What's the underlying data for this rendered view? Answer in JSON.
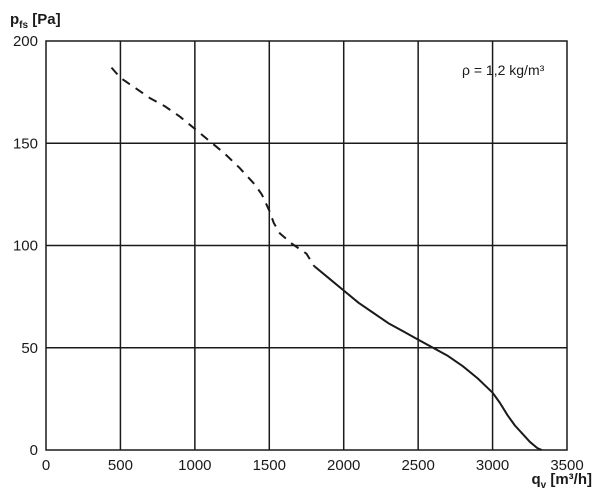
{
  "chart_data": {
    "type": "line",
    "ylabel": {
      "main": "p",
      "sub": "fs",
      "unit": " [Pa]"
    },
    "xlabel": {
      "main": "q",
      "sub": "v",
      "unit": " [m³/h]"
    },
    "annotation": "ρ = 1,2 kg/m³",
    "xlim": [
      0,
      3500
    ],
    "ylim": [
      0,
      200
    ],
    "x_ticks": [
      0,
      500,
      1000,
      1500,
      2000,
      2500,
      3000,
      3500
    ],
    "y_ticks": [
      0,
      50,
      100,
      150,
      200
    ],
    "grid": true,
    "series": [
      {
        "style": "dashed",
        "x": [
          440,
          500,
          600,
          700,
          800,
          900,
          1000,
          1100,
          1200,
          1300,
          1400,
          1450,
          1500,
          1530,
          1570,
          1650,
          1750,
          1800
        ],
        "y": [
          187,
          182,
          177,
          172,
          168,
          163,
          157,
          151,
          145,
          138,
          130,
          125,
          117,
          111,
          106,
          101,
          96,
          90
        ]
      },
      {
        "style": "solid",
        "x": [
          1800,
          1900,
          2000,
          2100,
          2200,
          2300,
          2400,
          2500,
          2600,
          2700,
          2800,
          2900,
          3000,
          3050,
          3100,
          3150,
          3200,
          3250,
          3300,
          3330
        ],
        "y": [
          90,
          84,
          78,
          72,
          67,
          62,
          58,
          54,
          50,
          46,
          41,
          35,
          28,
          23,
          17,
          12,
          8,
          4,
          1,
          0
        ]
      }
    ]
  }
}
